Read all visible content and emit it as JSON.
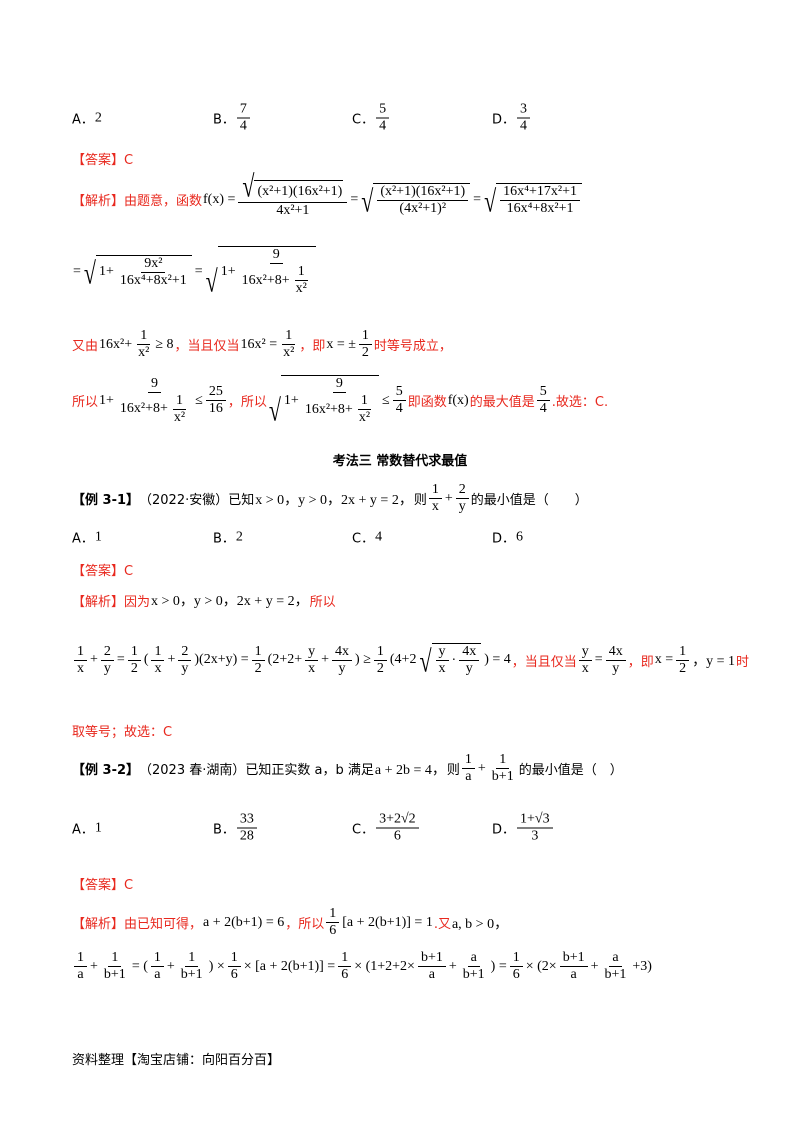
{
  "q_prev_options": [
    {
      "label": "A．",
      "tokens": [
        "2"
      ]
    },
    {
      "label": "B．",
      "tokens": [
        {
          "f": [
            [
              "7"
            ],
            [
              "4"
            ]
          ]
        }
      ]
    },
    {
      "label": "C．",
      "tokens": [
        {
          "f": [
            [
              "5"
            ],
            [
              "4"
            ]
          ]
        }
      ]
    },
    {
      "label": "D．",
      "tokens": [
        {
          "f": [
            [
              "3"
            ],
            [
              "4"
            ]
          ]
        }
      ]
    }
  ],
  "lines": {
    "ans1": [
      {
        "cn": "【答案】C"
      }
    ],
    "sol1a": [
      {
        "cn": "【解析】由题意，函数"
      },
      "f(x) =",
      {
        "f": [
          [
            {
              "sq": [
                "(x²+1)(16x²+1)"
              ]
            }
          ],
          [
            "4x²+1"
          ]
        ]
      },
      "=",
      {
        "sq": [
          {
            "f": [
              [
                "(x²+1)(16x²+1)"
              ],
              [
                "(4x²+1)²"
              ]
            ]
          }
        ]
      },
      "=",
      {
        "sq": [
          {
            "f": [
              [
                "16x⁴+17x²+1"
              ],
              [
                "16x⁴+8x²+1"
              ]
            ]
          }
        ]
      }
    ],
    "sol1b": [
      "=",
      {
        "sq": [
          "1+",
          {
            "f": [
              [
                "9x²"
              ],
              [
                "16x⁴+8x²+1"
              ]
            ]
          }
        ]
      },
      "=",
      {
        "sq": [
          "1+",
          {
            "f": [
              [
                "9"
              ],
              [
                "16x²+8+",
                {
                  "f": [
                    [
                      "1"
                    ],
                    [
                      "x²"
                    ]
                  ]
                }
              ]
            ]
          }
        ]
      }
    ],
    "sol1c": [
      {
        "cn": "又由"
      },
      "16x²+",
      {
        "f": [
          [
            "1"
          ],
          [
            "x²"
          ]
        ]
      },
      "≥ 8",
      {
        "cn": "，当且仅当"
      },
      "16x² =",
      {
        "f": [
          [
            "1"
          ],
          [
            "x²"
          ]
        ]
      },
      {
        "cn": "，即"
      },
      "x = ±",
      {
        "f": [
          [
            "1"
          ],
          [
            "2"
          ]
        ]
      },
      {
        "cn": "时等号成立，"
      }
    ],
    "sol1d": [
      {
        "cn": "所以"
      },
      "1+",
      {
        "f": [
          [
            "9"
          ],
          [
            "16x²+8+",
            {
              "f": [
                [
                  "1"
                ],
                [
                  "x²"
                ]
              ]
            }
          ]
        ]
      },
      "≤",
      {
        "f": [
          [
            "25"
          ],
          [
            "16"
          ]
        ]
      },
      {
        "cn": "，所以"
      },
      {
        "sq": [
          "1+",
          {
            "f": [
              [
                "9"
              ],
              [
                "16x²+8+",
                {
                  "f": [
                    [
                      "1"
                    ],
                    [
                      "x²"
                    ]
                  ]
                }
              ]
            ]
          }
        ]
      },
      "≤",
      {
        "f": [
          [
            "5"
          ],
          [
            "4"
          ]
        ]
      },
      {
        "cn": "即函数"
      },
      "f(x)",
      {
        "cn": "的最大值是"
      },
      {
        "f": [
          [
            "5"
          ],
          [
            "4"
          ]
        ]
      },
      {
        "cn": ".故选：C."
      }
    ],
    "ex31": [
      {
        "bd": "【例 3-1】"
      },
      {
        "bk": "（2022·安徽）已知"
      },
      "x > 0，y > 0，2x + y = 2，",
      {
        "bk": "则"
      },
      {
        "f": [
          [
            "1"
          ],
          [
            "x"
          ]
        ]
      },
      "+",
      {
        "f": [
          [
            "2"
          ],
          [
            "y"
          ]
        ]
      },
      {
        "bk": "的最小值是（　　）"
      }
    ],
    "ans31": [
      {
        "cn": "【答案】C"
      }
    ],
    "sol31a": [
      {
        "cn": "【解析】因为"
      },
      "x > 0，y > 0，2x + y = 2，",
      {
        "cn": "所以"
      }
    ],
    "sol31b": [
      {
        "f": [
          [
            "1"
          ],
          [
            "x"
          ]
        ]
      },
      "+",
      {
        "f": [
          [
            "2"
          ],
          [
            "y"
          ]
        ]
      },
      "=",
      {
        "f": [
          [
            "1"
          ],
          [
            "2"
          ]
        ]
      },
      "(",
      {
        "f": [
          [
            "1"
          ],
          [
            "x"
          ]
        ]
      },
      "+",
      {
        "f": [
          [
            "2"
          ],
          [
            "y"
          ]
        ]
      },
      ")(2x+y) =",
      {
        "f": [
          [
            "1"
          ],
          [
            "2"
          ]
        ]
      },
      "(2+2+",
      {
        "f": [
          [
            "y"
          ],
          [
            "x"
          ]
        ]
      },
      "+",
      {
        "f": [
          [
            "4x"
          ],
          [
            "y"
          ]
        ]
      },
      ") ≥",
      {
        "f": [
          [
            "1"
          ],
          [
            "2"
          ]
        ]
      },
      "(4+2",
      {
        "sq": [
          {
            "f": [
              [
                "y"
              ],
              [
                "x"
              ]
            ]
          },
          "·",
          {
            "f": [
              [
                "4x"
              ],
              [
                "y"
              ]
            ]
          }
        ]
      },
      ") = 4",
      {
        "cn": "，当且仅当"
      },
      {
        "f": [
          [
            "y"
          ],
          [
            "x"
          ]
        ]
      },
      "=",
      {
        "f": [
          [
            "4x"
          ],
          [
            "y"
          ]
        ]
      },
      {
        "cn": "，即"
      },
      "x =",
      {
        "f": [
          [
            "1"
          ],
          [
            "2"
          ]
        ]
      },
      "，y = 1",
      {
        "cn": "时"
      }
    ],
    "sol31c": [
      {
        "cn": "取等号；故选：C"
      }
    ],
    "ex32": [
      {
        "bd": "【例 3-2】"
      },
      {
        "bk": "（2023 春·湖南）已知正实数 a，b 满足"
      },
      "a + 2b = 4，",
      {
        "bk": "则"
      },
      {
        "f": [
          [
            "1"
          ],
          [
            "a"
          ]
        ]
      },
      "+",
      {
        "f": [
          [
            "1"
          ],
          [
            "b+1"
          ]
        ]
      },
      {
        "bk": "的最小值是（　）"
      }
    ],
    "ans32": [
      {
        "cn": "【答案】C"
      }
    ],
    "sol32a": [
      {
        "cn": "【解析】由已知可得，"
      },
      "a + 2(b+1) = 6",
      {
        "cn": "，所以"
      },
      {
        "f": [
          [
            "1"
          ],
          [
            "6"
          ]
        ]
      },
      "[a + 2(b+1)] = 1",
      {
        "cn": ".又"
      },
      "a, b > 0，"
    ],
    "sol32b": [
      {
        "f": [
          [
            "1"
          ],
          [
            "a"
          ]
        ]
      },
      "+",
      {
        "f": [
          [
            "1"
          ],
          [
            "b+1"
          ]
        ]
      },
      "= (",
      {
        "f": [
          [
            "1"
          ],
          [
            "a"
          ]
        ]
      },
      "+",
      {
        "f": [
          [
            "1"
          ],
          [
            "b+1"
          ]
        ]
      },
      ") ×",
      {
        "f": [
          [
            "1"
          ],
          [
            "6"
          ]
        ]
      },
      "× [a + 2(b+1)] =",
      {
        "f": [
          [
            "1"
          ],
          [
            "6"
          ]
        ]
      },
      "× (1+2+2×",
      {
        "f": [
          [
            "b+1"
          ],
          [
            "a"
          ]
        ]
      },
      "+",
      {
        "f": [
          [
            "a"
          ],
          [
            "b+1"
          ]
        ]
      },
      ") =",
      {
        "f": [
          [
            "1"
          ],
          [
            "6"
          ]
        ]
      },
      "× (2×",
      {
        "f": [
          [
            "b+1"
          ],
          [
            "a"
          ]
        ]
      },
      "+",
      {
        "f": [
          [
            "a"
          ],
          [
            "b+1"
          ]
        ]
      },
      "+3)"
    ]
  },
  "section_title": "考法三  常数替代求最值",
  "q31_options": [
    {
      "label": "A．",
      "tokens": [
        "1"
      ]
    },
    {
      "label": "B．",
      "tokens": [
        "2"
      ]
    },
    {
      "label": "C．",
      "tokens": [
        "4"
      ]
    },
    {
      "label": "D．",
      "tokens": [
        "6"
      ]
    }
  ],
  "q32_options": [
    {
      "label": "A．",
      "tokens": [
        "1"
      ]
    },
    {
      "label": "B．",
      "tokens": [
        {
          "f": [
            [
              "33"
            ],
            [
              "28"
            ]
          ]
        }
      ]
    },
    {
      "label": "C．",
      "tokens": [
        {
          "f": [
            [
              "3+2√2"
            ],
            [
              "6"
            ]
          ]
        }
      ]
    },
    {
      "label": "D．",
      "tokens": [
        {
          "f": [
            [
              "1+√3"
            ],
            [
              "3"
            ]
          ]
        }
      ]
    }
  ],
  "footer": "资料整理【淘宝店铺：向阳百分百】",
  "colors": {
    "answer_red": "#e8281e",
    "text": "#000000"
  }
}
